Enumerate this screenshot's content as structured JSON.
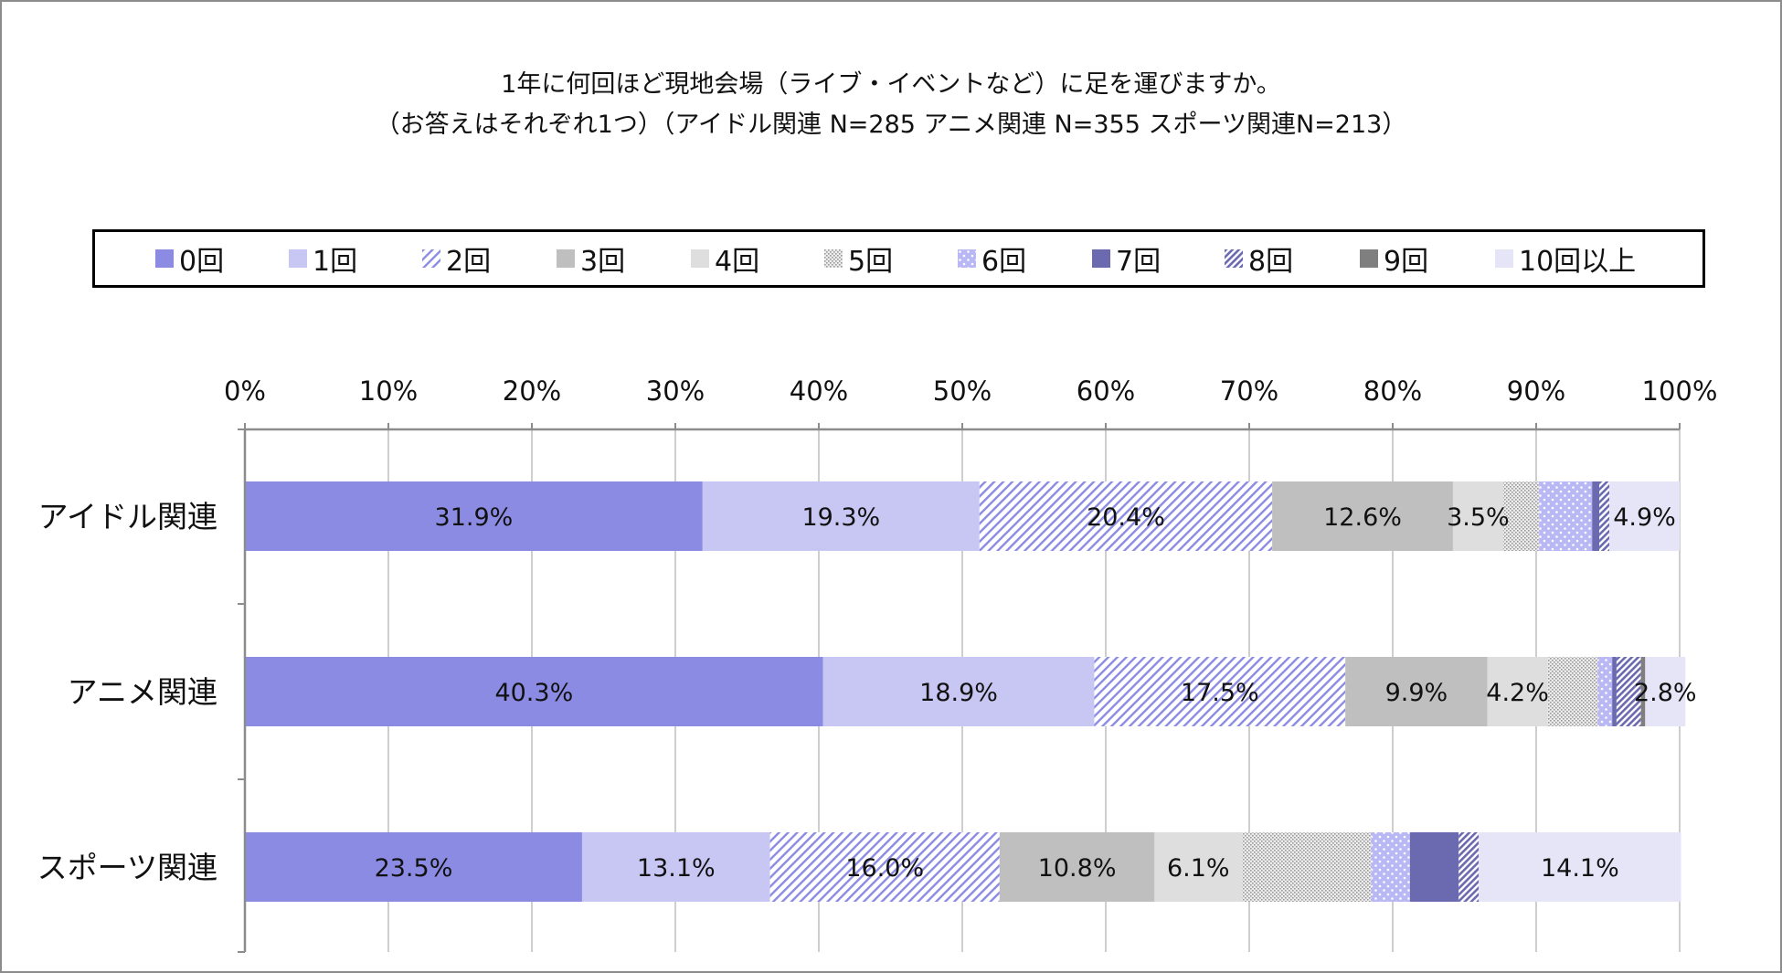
{
  "title_line1": "1年に何回ほど現地会場（ライブ・イベントなど）に足を運びますか。",
  "title_line2": "（お答えはそれぞれ1つ）（アイドル関連 N=285 アニメ関連 N=355 スポーツ関連N=213）",
  "chart_data": {
    "type": "bar",
    "orientation": "horizontal",
    "stacked": true,
    "title": "1年に何回ほど現地会場（ライブ・イベントなど）に足を運びますか。（お答えはそれぞれ1つ）（アイドル関連 N=285 アニメ関連 N=355 スポーツ関連N=213）",
    "categories": [
      "アイドル関連",
      "アニメ関連",
      "スポーツ関連"
    ],
    "xlim": [
      0,
      100
    ],
    "x_ticks": [
      "0%",
      "10%",
      "20%",
      "30%",
      "40%",
      "50%",
      "60%",
      "70%",
      "80%",
      "90%",
      "100%"
    ],
    "grid": true,
    "legend_position": "top",
    "series": [
      {
        "name": "0回",
        "values": [
          31.9,
          40.3,
          23.5
        ],
        "labels": [
          "31.9%",
          "40.3%",
          "23.5%"
        ],
        "color": "#8b8be4",
        "pattern": "solid"
      },
      {
        "name": "1回",
        "values": [
          19.3,
          18.9,
          13.1
        ],
        "labels": [
          "19.3%",
          "18.9%",
          "13.1%"
        ],
        "color": "#c8c6f2",
        "pattern": "solid"
      },
      {
        "name": "2回",
        "values": [
          20.4,
          17.5,
          16.0
        ],
        "labels": [
          "20.4%",
          "17.5%",
          "16.0%"
        ],
        "color": "#8b8be4",
        "pattern": "diagonal"
      },
      {
        "name": "3回",
        "values": [
          12.6,
          9.9,
          10.8
        ],
        "labels": [
          "12.6%",
          "9.9%",
          "10.8%"
        ],
        "color": "#bfbfbf",
        "pattern": "solid"
      },
      {
        "name": "4回",
        "values": [
          3.5,
          4.2,
          6.1
        ],
        "labels": [
          "3.5%",
          "4.2%",
          "6.1%"
        ],
        "color": "#dedede",
        "pattern": "solid"
      },
      {
        "name": "5回",
        "values": [
          2.5,
          3.5,
          9.0
        ],
        "labels": [
          "",
          "",
          ""
        ],
        "color": "#c8c8c8",
        "pattern": "dots"
      },
      {
        "name": "6回",
        "values": [
          3.7,
          1.0,
          2.7
        ],
        "labels": [
          "",
          "",
          ""
        ],
        "color": "#b9b8f4",
        "pattern": "dots-white"
      },
      {
        "name": "7回",
        "values": [
          0.5,
          0.3,
          3.4
        ],
        "labels": [
          "",
          "",
          ""
        ],
        "color": "#6b69b0",
        "pattern": "solid"
      },
      {
        "name": "8回",
        "values": [
          0.7,
          1.7,
          1.4
        ],
        "labels": [
          "",
          "",
          ""
        ],
        "color": "#6b69b0",
        "pattern": "diagonal-dense"
      },
      {
        "name": "9回",
        "values": [
          0.0,
          0.3,
          0.0
        ],
        "labels": [
          "",
          "",
          ""
        ],
        "color": "#7f7f7f",
        "pattern": "solid"
      },
      {
        "name": "10回以上",
        "values": [
          4.9,
          2.8,
          14.1
        ],
        "labels": [
          "4.9%",
          "2.8%",
          "14.1%"
        ],
        "color": "#e6e5f8",
        "pattern": "solid"
      }
    ]
  }
}
